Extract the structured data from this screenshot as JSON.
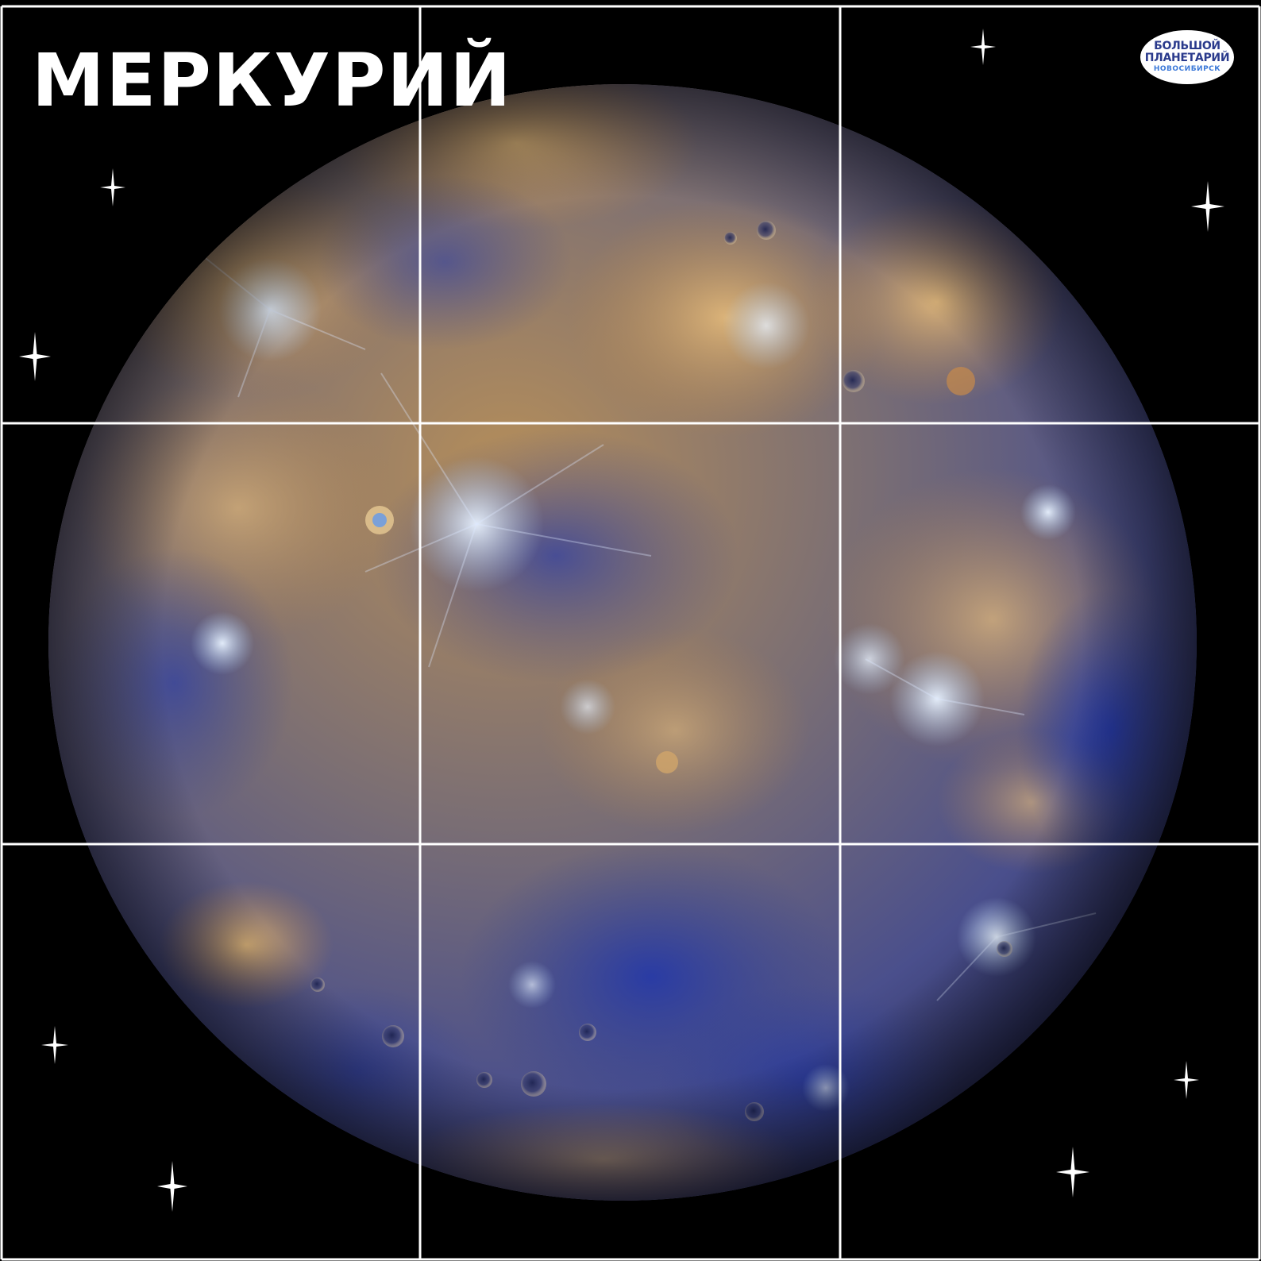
{
  "title": "МЕРКУРИЙ",
  "logo": {
    "line1": "БОЛЬШОЙ",
    "line2": "ПЛАНЕТАРИЙ",
    "line3": "НОВОСИБИРСК"
  },
  "colors": {
    "background": "#000000",
    "title": "#ffffff",
    "grid_lines": "#ffffff",
    "planet_ochre": "#b8874a",
    "planet_blue": "#3a4f9a",
    "logo_text": "#2a3a8c",
    "logo_subtext": "#3b78d8"
  },
  "grid": {
    "rows": 3,
    "columns": 3
  },
  "icons": [
    "sparkle-star-icon",
    "planetarium-logo"
  ]
}
